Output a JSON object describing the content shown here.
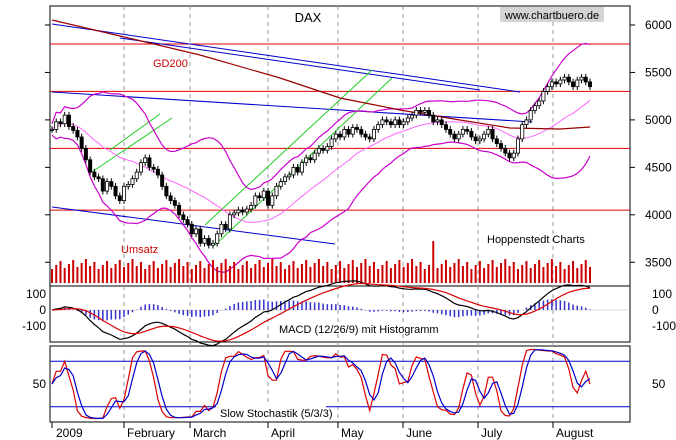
{
  "chart_data": [
    {
      "type": "candlestick",
      "title": "DAX",
      "watermark": "www.chartbuero.de",
      "credit": "Hoppenstedt Charts",
      "ma_label": "GD200",
      "y_ticks": [
        "3500",
        "4000",
        "4500",
        "5000",
        "5500",
        "6000"
      ],
      "ylim": [
        3250,
        6200
      ],
      "x_labels": [
        "2009",
        "February",
        "March",
        "April",
        "May",
        "June",
        "July",
        "August"
      ],
      "horizontal_levels": [
        5800,
        5300,
        4700,
        4050
      ],
      "close": [
        4900,
        4980,
        4960,
        5050,
        4930,
        4890,
        4820,
        4700,
        4580,
        4450,
        4400,
        4380,
        4250,
        4350,
        4300,
        4200,
        4150,
        4300,
        4320,
        4380,
        4450,
        4550,
        4600,
        4500,
        4480,
        4420,
        4300,
        4200,
        4150,
        4100,
        4000,
        3950,
        3900,
        3800,
        3850,
        3700,
        3750,
        3680,
        3700,
        3800,
        3900,
        3850,
        4000,
        4020,
        4050,
        4030,
        4060,
        4100,
        4200,
        4180,
        4250,
        4100,
        4200,
        4300,
        4350,
        4400,
        4420,
        4500,
        4450,
        4550,
        4600,
        4580,
        4650,
        4700,
        4680,
        4720,
        4800,
        4850,
        4820,
        4900,
        4850,
        4920,
        4900,
        4850,
        4820,
        4800,
        4900,
        4950,
        5000,
        4980,
        4950,
        5000,
        4950,
        4980,
        5020,
        5050,
        5100,
        5080,
        5100,
        5050,
        4980,
        5000,
        4950,
        4900,
        4850,
        4800,
        4850,
        4900,
        4880,
        4820,
        4780,
        4800,
        4850,
        4900,
        4800,
        4750,
        4700,
        4650,
        4600,
        4650,
        4800,
        4950,
        5000,
        5100,
        5150,
        5200,
        5300,
        5350,
        5400,
        5380,
        5420,
        5450,
        5400,
        5350,
        5420,
        5450,
        5400,
        5350
      ]
    },
    {
      "type": "bar",
      "title": "Umsatz"
    },
    {
      "type": "line",
      "title": "MACD (12/26/9) mit Histogramm",
      "y_ticks": [
        "100",
        "0",
        "-100"
      ],
      "ylim": [
        -200,
        150
      ]
    },
    {
      "type": "line",
      "title": "Slow Stochastik (5/3/3)",
      "y_ticks": [
        "50"
      ],
      "ylim": [
        0,
        100
      ],
      "levels": [
        80,
        20
      ]
    }
  ]
}
